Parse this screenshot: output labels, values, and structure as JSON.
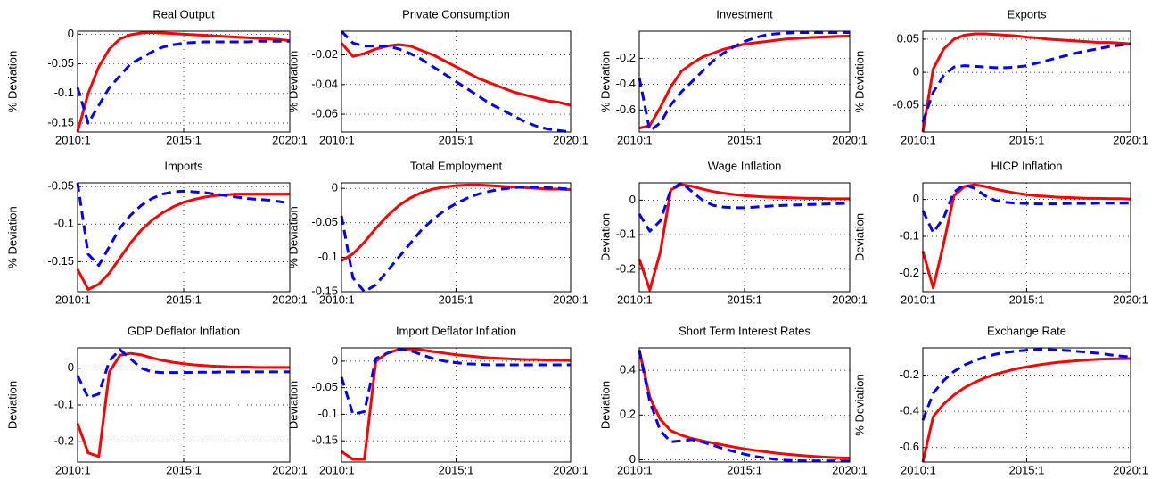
{
  "chart_data": [
    {
      "type": "line",
      "title": "Real Output",
      "ylabel": "% Deviation",
      "categories": [
        "2010:1",
        null,
        null,
        null,
        null,
        null,
        null,
        null,
        null,
        null,
        "2015:1",
        null,
        null,
        null,
        null,
        null,
        null,
        null,
        null,
        null,
        "2020:1"
      ],
      "ylim": [
        -0.165,
        0.005
      ],
      "yticks": [
        -0.15,
        -0.1,
        -0.05,
        0
      ],
      "grid": true,
      "series": [
        {
          "color": "#ff0000",
          "linestyle": "solid",
          "values": [
            -0.165,
            -0.1,
            -0.055,
            -0.025,
            -0.008,
            -0.001,
            0.002,
            0.003,
            0.002,
            0.001,
            0,
            -0.001,
            -0.002,
            -0.003,
            -0.004,
            -0.005,
            -0.006,
            -0.007,
            -0.008,
            -0.009,
            -0.011
          ]
        },
        {
          "color": "#0000ff",
          "linestyle": "dashed",
          "values": [
            -0.09,
            -0.15,
            -0.12,
            -0.09,
            -0.07,
            -0.05,
            -0.04,
            -0.03,
            -0.022,
            -0.018,
            -0.015,
            -0.014,
            -0.013,
            -0.013,
            -0.013,
            -0.013,
            -0.013,
            -0.012,
            -0.012,
            -0.012,
            -0.012
          ]
        }
      ]
    },
    {
      "type": "line",
      "title": "Private Consumption",
      "ylabel": "% Deviation",
      "categories": [
        "2010:1",
        null,
        null,
        null,
        null,
        null,
        null,
        null,
        null,
        null,
        "2015:1",
        null,
        null,
        null,
        null,
        null,
        null,
        null,
        null,
        null,
        "2020:1"
      ],
      "ylim": [
        -0.072,
        -0.004
      ],
      "yticks": [
        -0.06,
        -0.04,
        -0.02
      ],
      "grid": true,
      "series": [
        {
          "color": "#ff0000",
          "linestyle": "solid",
          "values": [
            -0.012,
            -0.021,
            -0.019,
            -0.016,
            -0.014,
            -0.013,
            -0.014,
            -0.017,
            -0.02,
            -0.024,
            -0.028,
            -0.032,
            -0.036,
            -0.039,
            -0.042,
            -0.045,
            -0.047,
            -0.049,
            -0.051,
            -0.052,
            -0.054
          ]
        },
        {
          "color": "#0000ff",
          "linestyle": "dashed",
          "values": [
            -0.004,
            -0.012,
            -0.014,
            -0.014,
            -0.014,
            -0.016,
            -0.019,
            -0.023,
            -0.028,
            -0.033,
            -0.038,
            -0.043,
            -0.048,
            -0.053,
            -0.057,
            -0.061,
            -0.065,
            -0.068,
            -0.07,
            -0.071,
            -0.072
          ]
        }
      ]
    },
    {
      "type": "line",
      "title": "Investment",
      "ylabel": "% Deviation",
      "categories": [
        "2010:1",
        null,
        null,
        null,
        null,
        null,
        null,
        null,
        null,
        null,
        "2015:1",
        null,
        null,
        null,
        null,
        null,
        null,
        null,
        null,
        null,
        "2020:1"
      ],
      "ylim": [
        -0.77,
        0.01
      ],
      "yticks": [
        -0.6,
        -0.4,
        -0.2
      ],
      "grid": true,
      "series": [
        {
          "color": "#ff0000",
          "linestyle": "solid",
          "values": [
            -0.74,
            -0.72,
            -0.58,
            -0.42,
            -0.3,
            -0.24,
            -0.19,
            -0.16,
            -0.13,
            -0.11,
            -0.09,
            -0.08,
            -0.07,
            -0.06,
            -0.05,
            -0.045,
            -0.04,
            -0.037,
            -0.033,
            -0.03,
            -0.028
          ]
        },
        {
          "color": "#0000ff",
          "linestyle": "dashed",
          "values": [
            -0.35,
            -0.76,
            -0.7,
            -0.56,
            -0.46,
            -0.38,
            -0.3,
            -0.22,
            -0.16,
            -0.11,
            -0.07,
            -0.04,
            -0.02,
            -0.01,
            -0.005,
            0,
            0,
            0,
            0,
            0,
            0
          ]
        }
      ]
    },
    {
      "type": "line",
      "title": "Exports",
      "ylabel": "% Deviation",
      "categories": [
        "2010:1",
        null,
        null,
        null,
        null,
        null,
        null,
        null,
        null,
        null,
        "2015:1",
        null,
        null,
        null,
        null,
        null,
        null,
        null,
        null,
        null,
        "2020:1"
      ],
      "ylim": [
        -0.09,
        0.062
      ],
      "yticks": [
        -0.05,
        0,
        0.05
      ],
      "grid": true,
      "series": [
        {
          "color": "#ff0000",
          "linestyle": "solid",
          "values": [
            -0.09,
            0.005,
            0.035,
            0.05,
            0.056,
            0.058,
            0.058,
            0.057,
            0.056,
            0.055,
            0.053,
            0.052,
            0.05,
            0.049,
            0.048,
            0.047,
            0.046,
            0.045,
            0.045,
            0.044,
            0.043
          ]
        },
        {
          "color": "#0000ff",
          "linestyle": "dashed",
          "values": [
            -0.075,
            -0.03,
            -0.005,
            0.008,
            0.01,
            0.009,
            0.008,
            0.007,
            0.007,
            0.008,
            0.01,
            0.014,
            0.018,
            0.022,
            0.026,
            0.03,
            0.033,
            0.036,
            0.039,
            0.041,
            0.043
          ]
        }
      ]
    },
    {
      "type": "line",
      "title": "Imports",
      "ylabel": "% Deviation",
      "categories": [
        "2010:1",
        null,
        null,
        null,
        null,
        null,
        null,
        null,
        null,
        null,
        "2015:1",
        null,
        null,
        null,
        null,
        null,
        null,
        null,
        null,
        null,
        "2020:1"
      ],
      "ylim": [
        -0.19,
        -0.045
      ],
      "yticks": [
        -0.15,
        -0.1,
        -0.05
      ],
      "grid": true,
      "series": [
        {
          "color": "#ff0000",
          "linestyle": "solid",
          "values": [
            -0.16,
            -0.187,
            -0.18,
            -0.165,
            -0.145,
            -0.125,
            -0.108,
            -0.095,
            -0.085,
            -0.077,
            -0.071,
            -0.067,
            -0.064,
            -0.062,
            -0.061,
            -0.06,
            -0.06,
            -0.06,
            -0.06,
            -0.06,
            -0.06
          ]
        },
        {
          "color": "#0000ff",
          "linestyle": "dashed",
          "values": [
            -0.045,
            -0.14,
            -0.155,
            -0.13,
            -0.105,
            -0.088,
            -0.075,
            -0.066,
            -0.06,
            -0.057,
            -0.056,
            -0.057,
            -0.058,
            -0.06,
            -0.062,
            -0.064,
            -0.066,
            -0.067,
            -0.068,
            -0.07,
            -0.072
          ]
        }
      ]
    },
    {
      "type": "line",
      "title": "Total Employment",
      "ylabel": "% Deviation",
      "categories": [
        "2010:1",
        null,
        null,
        null,
        null,
        null,
        null,
        null,
        null,
        null,
        "2015:1",
        null,
        null,
        null,
        null,
        null,
        null,
        null,
        null,
        null,
        "2020:1"
      ],
      "ylim": [
        -0.15,
        0.008
      ],
      "yticks": [
        -0.15,
        -0.1,
        -0.05,
        0
      ],
      "grid": true,
      "series": [
        {
          "color": "#ff0000",
          "linestyle": "solid",
          "values": [
            -0.105,
            -0.095,
            -0.078,
            -0.058,
            -0.04,
            -0.025,
            -0.014,
            -0.006,
            -0.001,
            0.002,
            0.004,
            0.005,
            0.005,
            0.004,
            0.003,
            0.002,
            0.001,
            0,
            -0.001,
            -0.001,
            -0.002
          ]
        },
        {
          "color": "#0000ff",
          "linestyle": "dashed",
          "values": [
            -0.04,
            -0.13,
            -0.15,
            -0.14,
            -0.12,
            -0.1,
            -0.08,
            -0.06,
            -0.045,
            -0.032,
            -0.022,
            -0.014,
            -0.008,
            -0.004,
            -0.001,
            0.001,
            0.002,
            0.002,
            0.001,
            0,
            -0.001
          ]
        }
      ]
    },
    {
      "type": "line",
      "title": "Wage Inflation",
      "ylabel": "Deviation",
      "categories": [
        "2010:1",
        null,
        null,
        null,
        null,
        null,
        null,
        null,
        null,
        null,
        "2015:1",
        null,
        null,
        null,
        null,
        null,
        null,
        null,
        null,
        null,
        "2020:1"
      ],
      "ylim": [
        -0.265,
        0.05
      ],
      "yticks": [
        -0.2,
        -0.1,
        0
      ],
      "grid": true,
      "series": [
        {
          "color": "#ff0000",
          "linestyle": "solid",
          "values": [
            -0.17,
            -0.26,
            -0.15,
            0.03,
            0.045,
            0.04,
            0.032,
            0.025,
            0.02,
            0.016,
            0.013,
            0.011,
            0.009,
            0.008,
            0.007,
            0.006,
            0.005,
            0.005,
            0.004,
            0.004,
            0.004
          ]
        },
        {
          "color": "#0000ff",
          "linestyle": "dashed",
          "values": [
            -0.04,
            -0.09,
            -0.06,
            0.03,
            0.05,
            0.025,
            0,
            -0.015,
            -0.02,
            -0.022,
            -0.022,
            -0.02,
            -0.018,
            -0.016,
            -0.015,
            -0.014,
            -0.013,
            -0.012,
            -0.011,
            -0.01,
            -0.009
          ]
        }
      ]
    },
    {
      "type": "line",
      "title": "HICP Inflation",
      "ylabel": "Deviation",
      "categories": [
        "2010:1",
        null,
        null,
        null,
        null,
        null,
        null,
        null,
        null,
        null,
        "2015:1",
        null,
        null,
        null,
        null,
        null,
        null,
        null,
        null,
        null,
        "2020:1"
      ],
      "ylim": [
        -0.25,
        0.045
      ],
      "yticks": [
        -0.2,
        -0.1,
        0
      ],
      "grid": true,
      "series": [
        {
          "color": "#ff0000",
          "linestyle": "solid",
          "values": [
            -0.14,
            -0.24,
            -0.12,
            0.01,
            0.035,
            0.04,
            0.035,
            0.028,
            0.022,
            0.017,
            0.013,
            0.01,
            0.008,
            0.006,
            0.005,
            0.004,
            0.003,
            0.003,
            0.002,
            0.002,
            0.001
          ]
        },
        {
          "color": "#0000ff",
          "linestyle": "dashed",
          "values": [
            -0.03,
            -0.09,
            -0.05,
            0.02,
            0.04,
            0.03,
            0.01,
            -0.003,
            -0.008,
            -0.01,
            -0.011,
            -0.012,
            -0.012,
            -0.012,
            -0.011,
            -0.011,
            -0.011,
            -0.01,
            -0.01,
            -0.01,
            -0.01
          ]
        }
      ]
    },
    {
      "type": "line",
      "title": "GDP Deflator Inflation",
      "ylabel": "Deviation",
      "categories": [
        "2010:1",
        null,
        null,
        null,
        null,
        null,
        null,
        null,
        null,
        null,
        "2015:1",
        null,
        null,
        null,
        null,
        null,
        null,
        null,
        null,
        null,
        "2020:1"
      ],
      "ylim": [
        -0.255,
        0.055
      ],
      "yticks": [
        -0.2,
        -0.1,
        0
      ],
      "grid": true,
      "series": [
        {
          "color": "#ff0000",
          "linestyle": "solid",
          "values": [
            -0.15,
            -0.23,
            -0.24,
            -0.01,
            0.035,
            0.04,
            0.036,
            0.028,
            0.021,
            0.016,
            0.012,
            0.009,
            0.007,
            0.005,
            0.004,
            0.003,
            0.003,
            0.002,
            0.002,
            0.002,
            0.002
          ]
        },
        {
          "color": "#0000ff",
          "linestyle": "dashed",
          "values": [
            -0.02,
            -0.08,
            -0.07,
            0.02,
            0.05,
            0.025,
            0,
            -0.01,
            -0.012,
            -0.012,
            -0.012,
            -0.011,
            -0.011,
            -0.011,
            -0.01,
            -0.01,
            -0.01,
            -0.01,
            -0.01,
            -0.01,
            -0.01
          ]
        }
      ]
    },
    {
      "type": "line",
      "title": "Import Deflator Inflation",
      "ylabel": "Deviation",
      "categories": [
        "2010:1",
        null,
        null,
        null,
        null,
        null,
        null,
        null,
        null,
        null,
        "2015:1",
        null,
        null,
        null,
        null,
        null,
        null,
        null,
        null,
        null,
        "2020:1"
      ],
      "ylim": [
        -0.19,
        0.025
      ],
      "yticks": [
        -0.15,
        -0.1,
        -0.05,
        0
      ],
      "grid": true,
      "series": [
        {
          "color": "#ff0000",
          "linestyle": "solid",
          "values": [
            -0.17,
            -0.185,
            -0.185,
            0,
            0.015,
            0.022,
            0.023,
            0.021,
            0.018,
            0.015,
            0.012,
            0.01,
            0.008,
            0.006,
            0.005,
            0.004,
            0.003,
            0.003,
            0.002,
            0.002,
            0.001
          ]
        },
        {
          "color": "#0000ff",
          "linestyle": "dashed",
          "values": [
            -0.03,
            -0.1,
            -0.095,
            0.005,
            0.015,
            0.022,
            0.02,
            0.012,
            0.005,
            0,
            -0.003,
            -0.005,
            -0.006,
            -0.007,
            -0.007,
            -0.007,
            -0.007,
            -0.007,
            -0.007,
            -0.007,
            -0.007
          ]
        }
      ]
    },
    {
      "type": "line",
      "title": "Short Term Interest Rates",
      "ylabel": "Deviation",
      "categories": [
        "2010:1",
        null,
        null,
        null,
        null,
        null,
        null,
        null,
        null,
        null,
        "2015:1",
        null,
        null,
        null,
        null,
        null,
        null,
        null,
        null,
        null,
        "2020:1"
      ],
      "ylim": [
        -0.01,
        0.5
      ],
      "yticks": [
        0,
        0.2,
        0.4
      ],
      "grid": true,
      "series": [
        {
          "color": "#ff0000",
          "linestyle": "solid",
          "values": [
            0.49,
            0.28,
            0.18,
            0.13,
            0.11,
            0.095,
            0.085,
            0.075,
            0.066,
            0.057,
            0.049,
            0.042,
            0.036,
            0.03,
            0.025,
            0.021,
            0.017,
            0.014,
            0.011,
            0.009,
            0.008
          ]
        },
        {
          "color": "#0000ff",
          "linestyle": "dashed",
          "values": [
            0.49,
            0.26,
            0.13,
            0.08,
            0.085,
            0.09,
            0.08,
            0.065,
            0.05,
            0.037,
            0.025,
            0.015,
            0.008,
            0.002,
            -0.002,
            -0.004,
            -0.005,
            -0.005,
            -0.005,
            -0.005,
            -0.005
          ]
        }
      ]
    },
    {
      "type": "line",
      "title": "Exchange Rate",
      "ylabel": "% Deviation",
      "categories": [
        "2010:1",
        null,
        null,
        null,
        null,
        null,
        null,
        null,
        null,
        null,
        "2015:1",
        null,
        null,
        null,
        null,
        null,
        null,
        null,
        null,
        null,
        "2020:1"
      ],
      "ylim": [
        -0.68,
        -0.05
      ],
      "yticks": [
        -0.6,
        -0.4,
        -0.2
      ],
      "grid": true,
      "series": [
        {
          "color": "#ff0000",
          "linestyle": "solid",
          "values": [
            -0.68,
            -0.43,
            -0.36,
            -0.31,
            -0.27,
            -0.24,
            -0.215,
            -0.195,
            -0.18,
            -0.165,
            -0.155,
            -0.145,
            -0.137,
            -0.13,
            -0.125,
            -0.12,
            -0.116,
            -0.113,
            -0.111,
            -0.11,
            -0.109
          ]
        },
        {
          "color": "#0000ff",
          "linestyle": "dashed",
          "values": [
            -0.45,
            -0.3,
            -0.23,
            -0.18,
            -0.145,
            -0.12,
            -0.1,
            -0.085,
            -0.075,
            -0.068,
            -0.063,
            -0.06,
            -0.06,
            -0.062,
            -0.065,
            -0.07,
            -0.075,
            -0.08,
            -0.088,
            -0.095,
            -0.1
          ]
        }
      ]
    }
  ]
}
